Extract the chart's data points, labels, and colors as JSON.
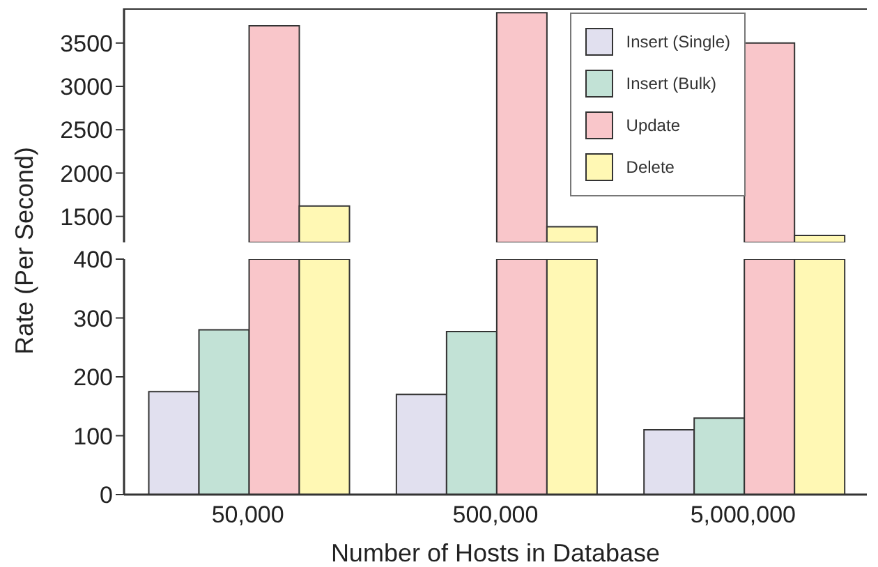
{
  "chart_data": [
    {
      "type": "bar",
      "categories": [
        "50,000",
        "500,000",
        "5,000,000"
      ],
      "series": [
        {
          "name": "Insert (Single)",
          "color": "#e1e0ef",
          "values": [
            null,
            null,
            null
          ]
        },
        {
          "name": "Insert (Bulk)",
          "color": "#c2e2d6",
          "values": [
            null,
            null,
            null
          ]
        },
        {
          "name": "Update",
          "color": "#f9c6ca",
          "values": [
            3700,
            3850,
            3500
          ]
        },
        {
          "name": "Delete",
          "color": "#fff8b4",
          "values": [
            1620,
            1380,
            1280
          ]
        }
      ],
      "ylim": [
        1200,
        3900
      ],
      "yticks": [
        1500,
        2000,
        2500,
        3000,
        3500
      ],
      "tick_labels": "y",
      "legend": "top right",
      "grid": false
    },
    {
      "type": "bar",
      "categories": [
        "50,000",
        "500,000",
        "5,000,000"
      ],
      "xlabel": "Number of Hosts in Database",
      "ylabel": "Rate (Per Second)",
      "series": [
        {
          "color": "#e1e0ef",
          "values": [
            175,
            170,
            110
          ]
        },
        {
          "color": "#c2e2d6",
          "values": [
            280,
            277,
            130
          ]
        },
        {
          "color": "#f9c6ca",
          "values": [
            400,
            400,
            400
          ]
        },
        {
          "color": "#fff8b4",
          "values": [
            400,
            400,
            400
          ]
        }
      ],
      "ylim": [
        0,
        400
      ],
      "yticks": [
        0,
        100,
        200,
        300,
        400
      ],
      "grid": false
    }
  ]
}
